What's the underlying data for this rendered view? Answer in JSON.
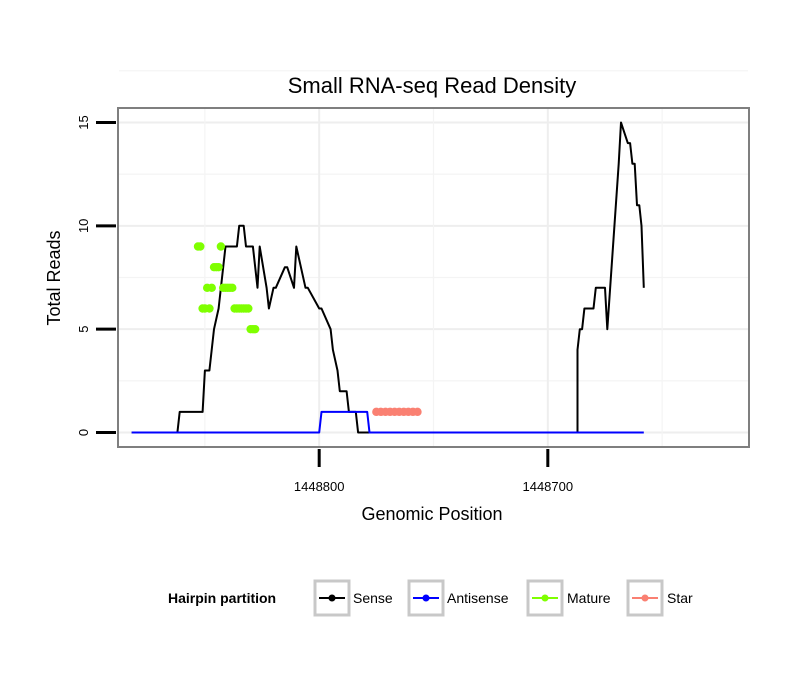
{
  "chart_data": {
    "type": "line",
    "title": "Small RNA-seq Read Density",
    "xlabel": "Genomic Position",
    "ylabel": "Total Reads",
    "xlim": [
      1448888,
      1448612
    ],
    "x_reversed": true,
    "ylim": [
      -0.7,
      15.7
    ],
    "x_ticks": [
      1448800,
      1448700
    ],
    "x_tick_labels": [
      "1448800",
      "1448700"
    ],
    "y_ticks": [
      0,
      5,
      10,
      15
    ],
    "y_tick_labels": [
      "0",
      "5",
      "10",
      "15"
    ],
    "grid": true,
    "legend": {
      "title": "Hairpin partition",
      "position": "bottom",
      "entries": [
        {
          "label": "Sense",
          "color": "#000000"
        },
        {
          "label": "Antisense",
          "color": "#0000ff"
        },
        {
          "label": "Mature",
          "color": "#7fff00"
        },
        {
          "label": "Star",
          "color": "#fa8072"
        }
      ]
    },
    "series": [
      {
        "name": "Sense",
        "color": "#000000",
        "style": "line",
        "x": [
          1448882,
          1448862,
          1448861,
          1448851,
          1448850,
          1448848,
          1448846,
          1448844,
          1448842,
          1448841,
          1448840,
          1448836,
          1448835,
          1448833,
          1448832,
          1448830,
          1448829,
          1448827,
          1448826,
          1448823,
          1448822,
          1448820,
          1448819,
          1448815,
          1448814,
          1448811,
          1448810,
          1448806,
          1448805,
          1448800,
          1448799,
          1448795,
          1448794,
          1448792,
          1448791,
          1448788,
          1448787,
          1448784,
          1448783,
          1448782,
          1448781,
          1448779,
          1448778,
          1448777,
          1448776,
          1448774,
          1448773,
          1448768,
          1448767,
          1448759,
          1448758,
          1448756,
          1448755,
          1448749,
          1448748,
          1448738,
          1448737,
          1448712,
          1448711,
          1448710,
          1448709,
          1448707,
          1448706,
          1448702,
          1448701,
          1448699,
          1448698,
          1448696,
          1448695,
          1448688,
          1448687,
          1448687,
          1448686,
          1448685,
          1448684,
          1448680,
          1448679,
          1448675,
          1448674,
          1448669,
          1448668,
          1448665,
          1448664,
          1448663,
          1448662,
          1448661,
          1448660,
          1448659,
          1448658
        ],
        "y": [
          0,
          0,
          1,
          1,
          3,
          3,
          5,
          6,
          8,
          9,
          9,
          9,
          10,
          10,
          9,
          9,
          9,
          7,
          9,
          7,
          6,
          7,
          7,
          8,
          8,
          7,
          9,
          7,
          7,
          6,
          6,
          5,
          4,
          3,
          2,
          2,
          1,
          1,
          0,
          0,
          0,
          0,
          0,
          0,
          0,
          0,
          0,
          0,
          0,
          0,
          0,
          0,
          0,
          0,
          0,
          0,
          0,
          0,
          0,
          0,
          0,
          0,
          0,
          0,
          0,
          0,
          0,
          0,
          0,
          0,
          0,
          4,
          5,
          5,
          6,
          6,
          7,
          7,
          5,
          13,
          15,
          14,
          14,
          13,
          13,
          11,
          11,
          10,
          7
        ]
      },
      {
        "name": "Antisense",
        "color": "#0000ff",
        "style": "line",
        "x": [
          1448882,
          1448800,
          1448799,
          1448779,
          1448778,
          1448662,
          1448658
        ],
        "y": [
          0,
          0,
          1,
          1,
          0,
          0,
          0
        ]
      },
      {
        "name": "Mature",
        "color": "#7fff00",
        "style": "points",
        "x": [
          1448853,
          1448852,
          1448851,
          1448850,
          1448849,
          1448848,
          1448847,
          1448846,
          1448845,
          1448844,
          1448843,
          1448842,
          1448841,
          1448840,
          1448839,
          1448838,
          1448837,
          1448836,
          1448835,
          1448834,
          1448833,
          1448832,
          1448831,
          1448830,
          1448829,
          1448828
        ],
        "y": [
          9,
          9,
          6,
          6,
          7,
          6,
          7,
          8,
          8,
          8,
          9,
          7,
          7,
          7,
          7,
          7,
          6,
          6,
          6,
          6,
          6,
          6,
          6,
          5,
          5,
          5
        ]
      },
      {
        "name": "Star",
        "color": "#fa8072",
        "style": "points",
        "x": [
          1448775,
          1448773,
          1448771,
          1448769,
          1448767,
          1448765,
          1448763,
          1448761,
          1448759,
          1448757
        ],
        "y": [
          1,
          1,
          1,
          1,
          1,
          1,
          1,
          1,
          1,
          1
        ]
      }
    ]
  }
}
